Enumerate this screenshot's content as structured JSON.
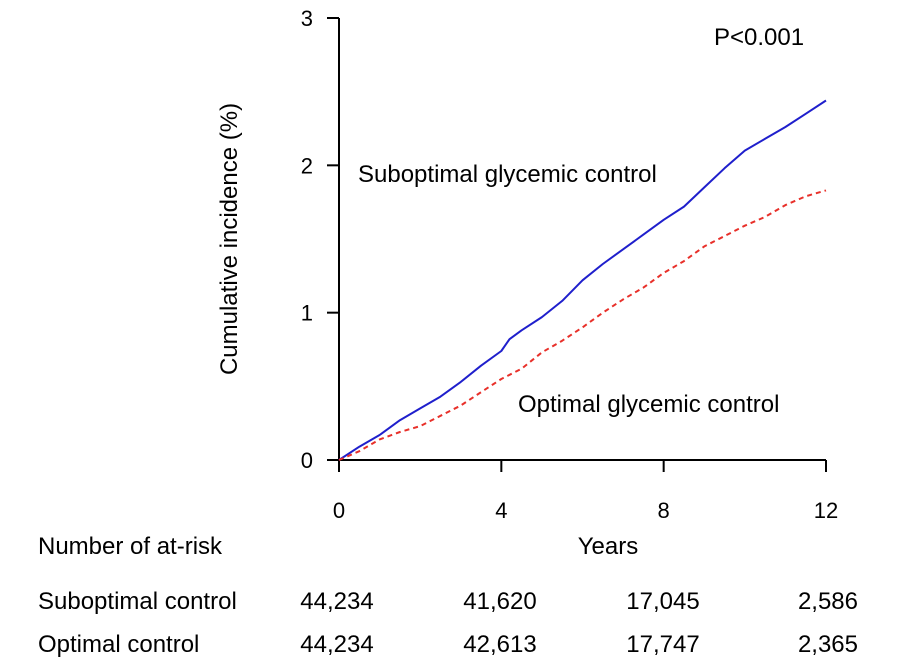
{
  "chart_data": {
    "type": "line",
    "xlabel": "Years",
    "ylabel": "Cumulative incidence (%)",
    "xticks": [
      "0",
      "4",
      "8",
      "12"
    ],
    "yticks": [
      "0",
      "1",
      "2",
      "3"
    ],
    "xlim": [
      0,
      12
    ],
    "ylim": [
      0,
      3
    ],
    "grid": false,
    "annotation": "P<0.001",
    "series": [
      {
        "name": "Suboptimal glycemic control",
        "color": "#1f1fcc",
        "style": "solid",
        "x": [
          0,
          0.5,
          1,
          1.5,
          2,
          2.5,
          3,
          3.5,
          4,
          4.2,
          4.5,
          5,
          5.5,
          6,
          6.5,
          7,
          7.5,
          8,
          8.5,
          9,
          9.5,
          10,
          10.5,
          11,
          11.5,
          12
        ],
        "y": [
          0,
          0.09,
          0.17,
          0.27,
          0.35,
          0.43,
          0.53,
          0.64,
          0.74,
          0.82,
          0.88,
          0.97,
          1.08,
          1.22,
          1.33,
          1.43,
          1.53,
          1.63,
          1.72,
          1.85,
          1.98,
          2.1,
          2.18,
          2.26,
          2.35,
          2.44
        ]
      },
      {
        "name": "Optimal glycemic control",
        "color": "#e8302a",
        "style": "dashed",
        "x": [
          0,
          0.5,
          1,
          1.5,
          2,
          2.5,
          3,
          3.5,
          4,
          4.5,
          5,
          5.5,
          6,
          6.5,
          7,
          7.5,
          8,
          8.5,
          9,
          9.5,
          10,
          10.5,
          11,
          11.5,
          12
        ],
        "y": [
          0,
          0.06,
          0.14,
          0.19,
          0.23,
          0.3,
          0.37,
          0.46,
          0.55,
          0.62,
          0.73,
          0.81,
          0.9,
          1.0,
          1.09,
          1.17,
          1.27,
          1.35,
          1.45,
          1.52,
          1.59,
          1.65,
          1.73,
          1.79,
          1.83
        ]
      }
    ]
  },
  "at_risk": {
    "header": "Number of at-risk",
    "rows": [
      {
        "label": "Suboptimal control",
        "values": [
          "44,234",
          "41,620",
          "17,045",
          "2,586"
        ]
      },
      {
        "label": "Optimal control",
        "values": [
          "44,234",
          "42,613",
          "17,747",
          "2,365"
        ]
      }
    ]
  }
}
